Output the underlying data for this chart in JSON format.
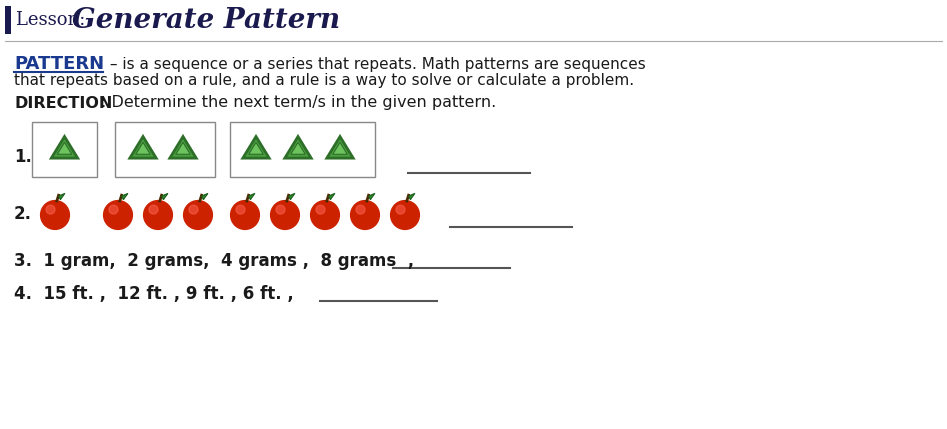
{
  "title_lesson": "Lesson: ",
  "title_main": "Generate Pattern",
  "pattern_word": "PATTERN",
  "pattern_def1": " – is a sequence or a series that repeats. Math patterns are sequences",
  "pattern_def2": "that repeats based on a rule, and a rule is a way to solve or calculate a problem.",
  "direction_bold": "DIRECTION",
  "direction_text": ": Determine the next term/s in the given pattern.",
  "item3": "3.  1 gram,  2 grams,  4 grams ,  8 grams  ,",
  "item4": "4.  15 ft. ,  12 ft. , 9 ft. , 6 ft. ,",
  "bg_color": "#ffffff",
  "title_color": "#1a1a4e",
  "pattern_word_color": "#1a3a8f",
  "text_color": "#1a1a1a",
  "triangle_fill": "#4a9e3f",
  "triangle_dark": "#2d6e28",
  "triangle_light": "#6dc45f",
  "apple_red": "#cc2200",
  "apple_shine": "#ff6655",
  "apple_stem": "#4a2a00",
  "apple_leaf": "#2d8c2d",
  "apple_leaf_edge": "#1a5c1a",
  "underline_color": "#555555",
  "box_edge": "#888888"
}
